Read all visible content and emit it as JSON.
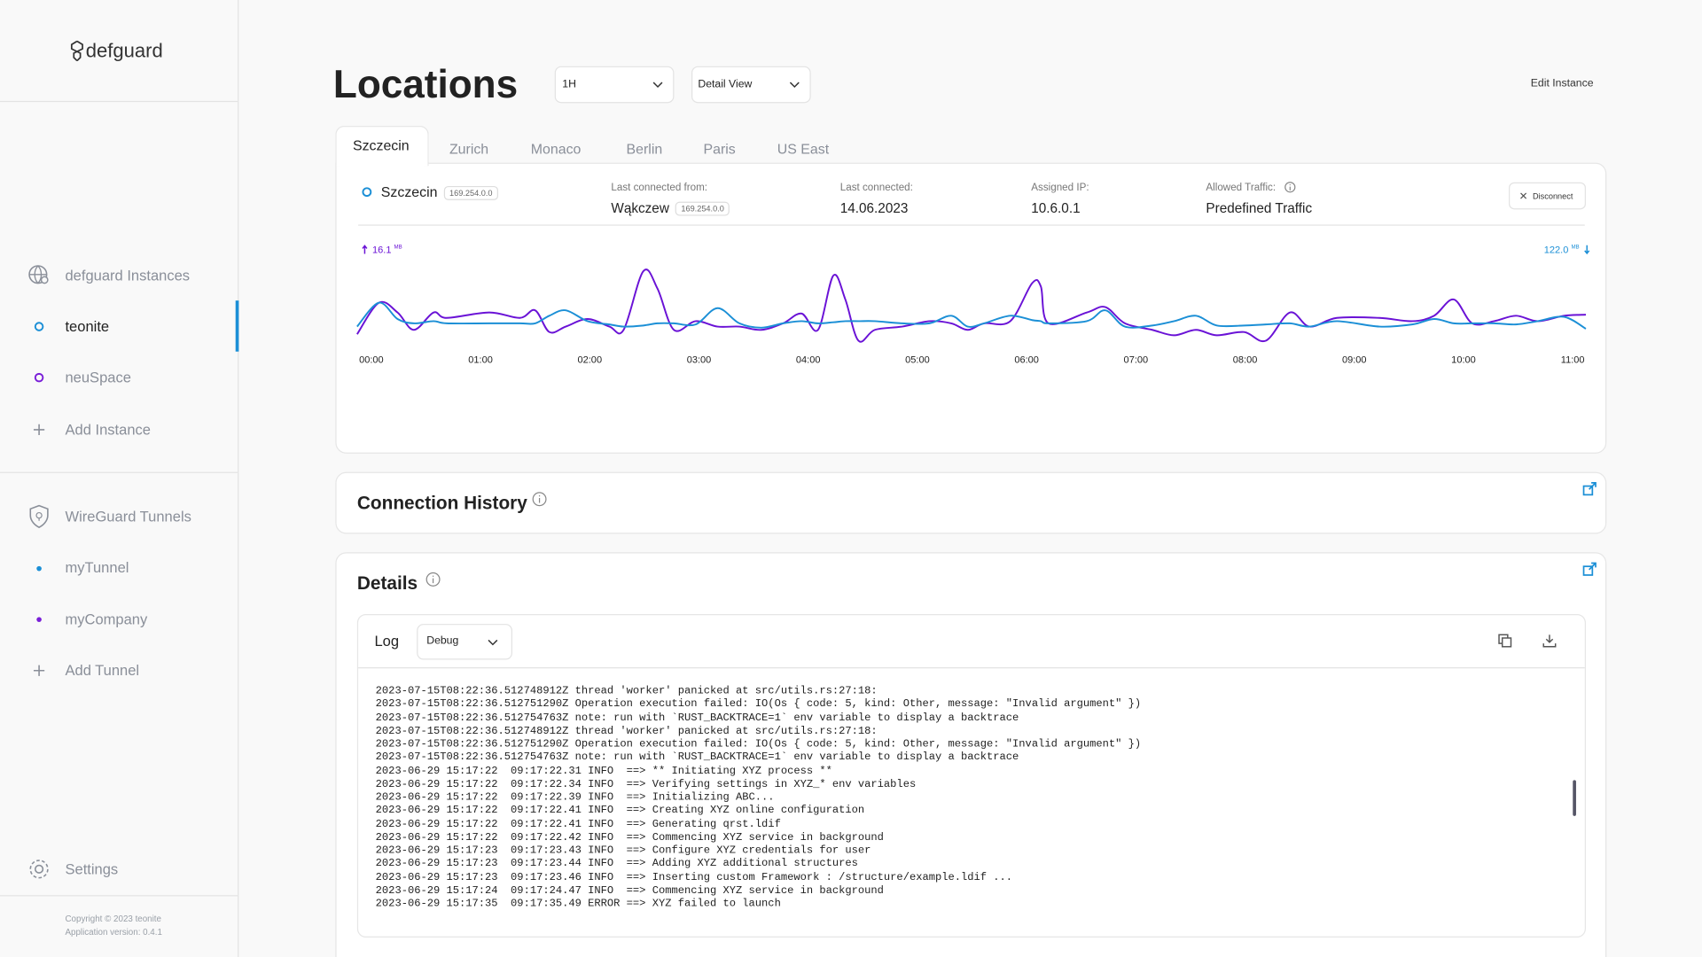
{
  "sidebar": {
    "logo": "defguard",
    "instances_title": "defguard Instances",
    "instances": [
      "teonite",
      "neuSpace"
    ],
    "add_instance": "Add Instance",
    "tunnels_title": "WireGuard Tunnels",
    "tunnels": [
      "myTunnel",
      "myCompany"
    ],
    "add_tunnel": "Add Tunnel",
    "settings": "Settings",
    "copyright": "Copyright © 2023 teonite",
    "version": "Application version: 0.4.1"
  },
  "header": {
    "title": "Locations",
    "range": "1H",
    "view": "Detail View",
    "edit": "Edit Instance"
  },
  "tabs": [
    "Szczecin",
    "Zurich",
    "Monaco",
    "Berlin",
    "Paris",
    "US East"
  ],
  "location": {
    "name": "Szczecin",
    "ip": "169.254.0.0",
    "last_from_label": "Last connected from:",
    "last_from": "Wąkczew",
    "last_from_ip": "169.254.0.0",
    "last_connected_label": "Last connected:",
    "last_connected": "14.06.2023",
    "assigned_ip_label": "Assigned IP:",
    "assigned_ip": "10.6.0.1",
    "traffic_label": "Allowed Traffic:",
    "traffic": "Predefined Traffic",
    "disconnect": "Disconnect"
  },
  "chart_data": {
    "type": "line",
    "upload": 16.1,
    "upload_unit": "MB",
    "download": {
      "value": 122.0,
      "label": "122.0"
    },
    "download_unit": "MB",
    "x": [
      -0.13,
      0.07,
      0.24,
      0.39,
      0.57,
      0.69,
      1.08,
      1.36,
      1.5,
      1.63,
      1.78,
      1.98,
      2.18,
      2.31,
      2.49,
      2.62,
      2.77,
      2.97,
      3.17,
      3.37,
      3.57,
      3.77,
      3.94,
      4.09,
      4.23,
      4.34,
      4.46,
      4.61,
      4.86,
      5.11,
      5.31,
      5.46,
      5.61,
      5.85,
      6.05,
      6.13,
      6.2,
      6.55,
      6.72,
      6.9,
      7.15,
      7.35,
      7.55,
      7.74,
      7.99,
      8.19,
      8.41,
      8.59,
      8.84,
      9.23,
      9.53,
      9.73,
      9.91,
      10.08,
      10.28,
      10.48,
      10.68,
      10.92,
      11.12
    ],
    "xlim": [
      -0.13,
      11.12
    ],
    "xticks": [
      {
        "value": 0,
        "label": "00:00"
      },
      {
        "value": 1,
        "label": "01:00"
      },
      {
        "value": 2,
        "label": "02:00"
      },
      {
        "value": 3,
        "label": "03:00"
      },
      {
        "value": 4,
        "label": "04:00"
      },
      {
        "value": 5,
        "label": "05:00"
      },
      {
        "value": 6,
        "label": "06:00"
      },
      {
        "value": 7,
        "label": "07:00"
      },
      {
        "value": 8,
        "label": "08:00"
      },
      {
        "value": 9,
        "label": "09:00"
      },
      {
        "value": 10,
        "label": "10:00"
      },
      {
        "value": 11,
        "label": "11:00"
      }
    ],
    "ylim": [
      0,
      100
    ],
    "series": [
      {
        "color": "#6a12d6",
        "values": [
          18,
          47,
          38,
          22,
          38,
          33,
          38,
          33,
          40,
          20,
          25,
          32,
          25,
          22,
          76,
          60,
          22,
          30,
          25,
          25,
          22,
          28,
          37,
          22,
          72,
          50,
          12,
          22,
          25,
          30,
          28,
          22,
          28,
          30,
          65,
          62,
          28,
          38,
          43,
          28,
          22,
          17,
          22,
          17,
          20,
          12,
          38,
          25,
          33,
          33,
          30,
          35,
          50,
          28,
          30,
          35,
          30,
          35,
          36
        ]
      },
      {
        "color": "#1b8fd6",
        "values": [
          25,
          47,
          32,
          28,
          30,
          28,
          28,
          28,
          28,
          35,
          40,
          30,
          27,
          25,
          26,
          28,
          28,
          27,
          42,
          28,
          24,
          28,
          30,
          28,
          29,
          30,
          30,
          30,
          28,
          28,
          35,
          25,
          28,
          35,
          31,
          30,
          28,
          30,
          40,
          25,
          26,
          30,
          35,
          26,
          26,
          27,
          28,
          25,
          30,
          25,
          27,
          32,
          28,
          28,
          28,
          27,
          30,
          34,
          23
        ]
      }
    ]
  },
  "connection_history": {
    "title": "Connection History"
  },
  "details": {
    "title": "Details",
    "log_label": "Log",
    "level": "Debug",
    "lines": [
      "2023-07-15T08:22:36.512748912Z thread 'worker' panicked at src/utils.rs:27:18:",
      "2023-07-15T08:22:36.512751290Z Operation execution failed: IO(Os { code: 5, kind: Other, message: \"Invalid argument\" })",
      "2023-07-15T08:22:36.512754763Z note: run with `RUST_BACKTRACE=1` env variable to display a backtrace",
      "2023-07-15T08:22:36.512748912Z thread 'worker' panicked at src/utils.rs:27:18:",
      "2023-07-15T08:22:36.512751290Z Operation execution failed: IO(Os { code: 5, kind: Other, message: \"Invalid argument\" })",
      "2023-07-15T08:22:36.512754763Z note: run with `RUST_BACKTRACE=1` env variable to display a backtrace",
      "2023-06-29 15:17:22  09:17:22.31 INFO  ==> ** Initiating XYZ process **",
      "2023-06-29 15:17:22  09:17:22.34 INFO  ==> Verifying settings in XYZ_* env variables",
      "2023-06-29 15:17:22  09:17:22.39 INFO  ==> Initializing ABC...",
      "2023-06-29 15:17:22  09:17:22.41 INFO  ==> Creating XYZ online configuration",
      "2023-06-29 15:17:22  09:17:22.41 INFO  ==> Generating qrst.ldif",
      "2023-06-29 15:17:22  09:17:22.42 INFO  ==> Commencing XYZ service in background",
      "2023-06-29 15:17:23  09:17:23.43 INFO  ==> Configure XYZ credentials for user",
      "2023-06-29 15:17:23  09:17:23.44 INFO  ==> Adding XYZ additional structures",
      "2023-06-29 15:17:23  09:17:23.46 INFO  ==> Inserting custom Framework : /structure/example.ldif ...",
      "2023-06-29 15:17:24  09:17:24.47 INFO  ==> Commencing XYZ service in background",
      "2023-06-29 15:17:35  09:17:35.49 ERROR ==> XYZ failed to launch"
    ]
  }
}
